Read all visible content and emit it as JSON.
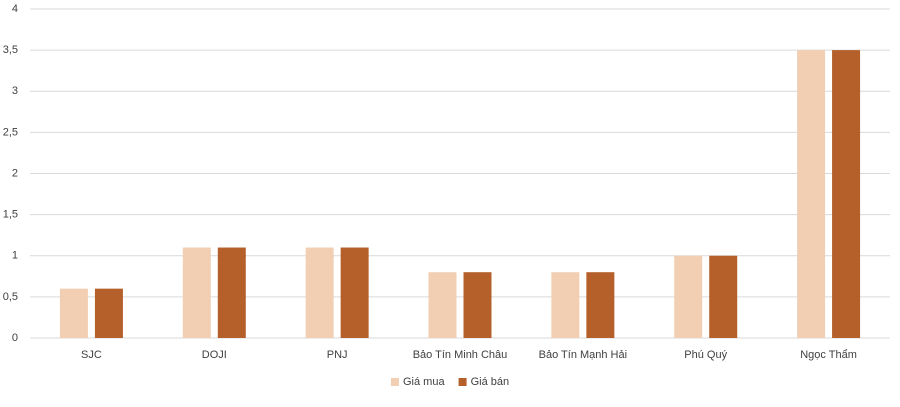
{
  "chart_data": {
    "type": "bar",
    "categories": [
      "SJC",
      "DOJI",
      "PNJ",
      "Bảo Tín Minh Châu",
      "Bảo Tín Mạnh Hải",
      "Phú Quý",
      "Ngọc Thẩm"
    ],
    "series": [
      {
        "name": "Giá mua",
        "color": "#f2cfb3",
        "values": [
          0.6,
          1.1,
          1.1,
          0.8,
          0.8,
          1,
          3.5
        ]
      },
      {
        "name": "Giá bán",
        "color": "#b5602b",
        "values": [
          0.6,
          1.1,
          1.1,
          0.8,
          0.8,
          1,
          3.5
        ]
      }
    ],
    "ylim": [
      0,
      4
    ],
    "yticks": [
      0,
      {
        "value": 0.5,
        "label": "0,5"
      },
      1,
      {
        "value": 1.5,
        "label": "1,5"
      },
      2,
      {
        "value": 2.5,
        "label": "2,5"
      },
      3,
      {
        "value": 3.5,
        "label": "3,5"
      },
      4
    ],
    "grid": true,
    "legend": "bottom"
  }
}
